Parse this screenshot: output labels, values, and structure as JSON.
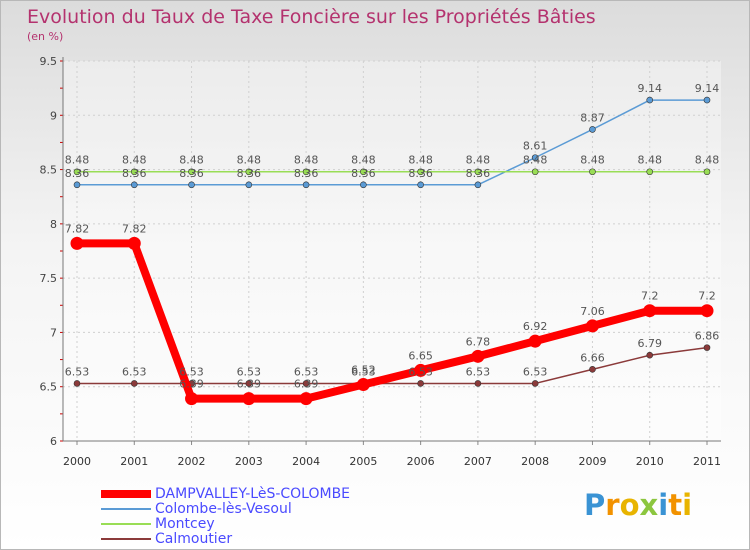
{
  "header": {
    "title": "Evolution du Taux de Taxe Foncière sur les Propriétés Bâties",
    "unit": "(en %)"
  },
  "logo": {
    "text": "Proxiti",
    "letters": [
      {
        "ch": "P",
        "color": "#3a93d4"
      },
      {
        "ch": "r",
        "color": "#f29200"
      },
      {
        "ch": "o",
        "color": "#e8b400"
      },
      {
        "ch": "x",
        "color": "#8cc63f"
      },
      {
        "ch": "i",
        "color": "#3a93d4"
      },
      {
        "ch": "t",
        "color": "#f29200"
      },
      {
        "ch": "i",
        "color": "#e8b400"
      }
    ]
  },
  "chart_data": {
    "type": "line",
    "title": "Evolution du Taux de Taxe Foncière sur les Propriétés Bâties",
    "ylabel": "(en %)",
    "xlabel": "",
    "x": [
      "2000",
      "2001",
      "2002",
      "2003",
      "2004",
      "2005",
      "2006",
      "2007",
      "2008",
      "2009",
      "2010",
      "2011"
    ],
    "ylim": [
      6,
      9.5
    ],
    "yticks": [
      "6",
      "6.5",
      "7",
      "7.5",
      "8",
      "8.5",
      "9",
      "9.5"
    ],
    "ytick_values": [
      6,
      6.5,
      7,
      7.5,
      8,
      8.5,
      9,
      9.5
    ],
    "legend_position": "bottom-left",
    "series": [
      {
        "name": "DAMPVALLEY-LèS-COLOMBE",
        "color": "#ff0000",
        "thick": true,
        "values": [
          7.82,
          7.82,
          6.39,
          6.39,
          6.39,
          6.52,
          6.65,
          6.78,
          6.92,
          7.06,
          7.2,
          7.2
        ],
        "labels": [
          "7.82",
          "7.82",
          "6.39",
          "6.39",
          "6.39",
          "6.52",
          "6.65",
          "6.78",
          "6.92",
          "7.06",
          "7.2",
          "7.2"
        ]
      },
      {
        "name": "Colombe-lès-Vesoul",
        "color": "#5b9bd5",
        "thick": false,
        "values": [
          8.36,
          8.36,
          8.36,
          8.36,
          8.36,
          8.36,
          8.36,
          8.36,
          8.61,
          8.87,
          9.14,
          9.14
        ],
        "labels": [
          "8.36",
          "8.36",
          "8.36",
          "8.36",
          "8.36",
          "8.36",
          "8.36",
          "8.36",
          "8.61",
          "8.87",
          "9.14",
          "9.14"
        ]
      },
      {
        "name": "Montcey",
        "color": "#99dd55",
        "thick": false,
        "values": [
          8.48,
          8.48,
          8.48,
          8.48,
          8.48,
          8.48,
          8.48,
          8.48,
          8.48,
          8.48,
          8.48,
          8.48
        ],
        "labels": [
          "8.48",
          "8.48",
          "8.48",
          "8.48",
          "8.48",
          "8.48",
          "8.48",
          "8.48",
          "8.48",
          "8.48",
          "8.48",
          "8.48"
        ]
      },
      {
        "name": "Calmoutier",
        "color": "#8b3a3a",
        "thick": false,
        "values": [
          6.53,
          6.53,
          6.53,
          6.53,
          6.53,
          6.53,
          6.53,
          6.53,
          6.53,
          6.66,
          6.79,
          6.86
        ],
        "labels": [
          "6.53",
          "6.53",
          "6.53",
          "6.53",
          "6.53",
          "6.53",
          "6.53",
          "6.53",
          "6.53",
          "6.66",
          "6.79",
          "6.86"
        ]
      }
    ]
  }
}
